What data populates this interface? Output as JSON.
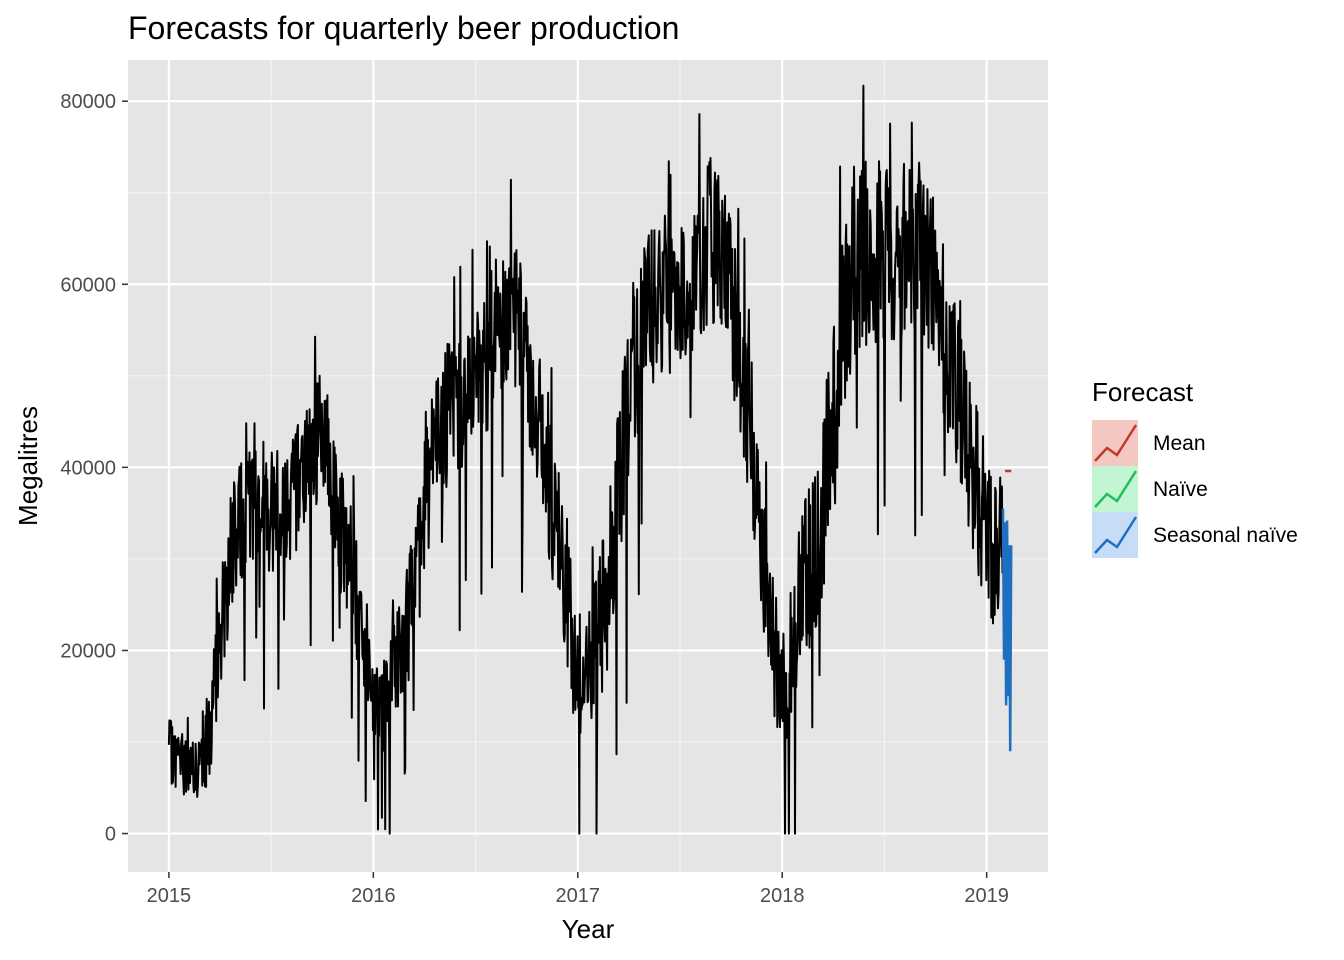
{
  "chart_data": {
    "type": "line",
    "title": "Forecasts for quarterly beer production",
    "xlabel": "Year",
    "ylabel": "Megalitres",
    "xlim": [
      2014.8,
      2019.3
    ],
    "ylim": [
      -4200,
      84500
    ],
    "x_ticks": [
      2015,
      2016,
      2017,
      2018,
      2019
    ],
    "x_tick_labels": [
      "2015",
      "2016",
      "2017",
      "2018",
      "2019"
    ],
    "y_ticks": [
      0,
      20000,
      40000,
      60000,
      80000
    ],
    "y_tick_labels": [
      "0",
      "20000",
      "40000",
      "60000",
      "80000"
    ],
    "grid": true,
    "legend": {
      "title": "Forecast",
      "placement": "right",
      "entries": [
        {
          "label": "Mean",
          "color": "#c0392b",
          "fill": "#f4c7c3"
        },
        {
          "label": "Naïve",
          "color": "#1fbf5a",
          "fill": "#c3f5d2"
        },
        {
          "label": "Seasonal naïve",
          "color": "#1f6fc0",
          "fill": "#c6dcf7"
        }
      ]
    },
    "series": [
      {
        "role": "actual",
        "color": "#000000",
        "x": [
          2015.0,
          2015.05,
          2015.1,
          2015.15,
          2015.2,
          2015.25,
          2015.3,
          2015.35,
          2015.4,
          2015.45,
          2015.5,
          2015.55,
          2015.6,
          2015.65,
          2015.7,
          2015.75,
          2015.8,
          2015.85,
          2015.9,
          2015.95,
          2016.0,
          2016.05,
          2016.1,
          2016.15,
          2016.2,
          2016.25,
          2016.3,
          2016.35,
          2016.4,
          2016.45,
          2016.5,
          2016.55,
          2016.6,
          2016.65,
          2016.7,
          2016.75,
          2016.8,
          2016.85,
          2016.9,
          2016.95,
          2017.0,
          2017.05,
          2017.1,
          2017.15,
          2017.2,
          2017.25,
          2017.3,
          2017.35,
          2017.4,
          2017.45,
          2017.5,
          2017.55,
          2017.6,
          2017.65,
          2017.7,
          2017.75,
          2017.8,
          2017.85,
          2017.9,
          2017.95,
          2018.0,
          2018.05,
          2018.1,
          2018.15,
          2018.2,
          2018.25,
          2018.3,
          2018.35,
          2018.4,
          2018.45,
          2018.5,
          2018.55,
          2018.6,
          2018.65,
          2018.7,
          2018.75,
          2018.8,
          2018.85,
          2018.9,
          2018.95,
          2019.0,
          2019.05,
          2019.08
        ],
        "values": [
          9000,
          8000,
          7500,
          6500,
          10000,
          22000,
          30000,
          34000,
          35000,
          36000,
          35500,
          36000,
          37000,
          39000,
          42000,
          44000,
          38000,
          32000,
          28000,
          22000,
          15000,
          14000,
          17000,
          21000,
          27000,
          35000,
          42000,
          45000,
          47000,
          48000,
          50000,
          52000,
          55000,
          57000,
          56000,
          52000,
          46000,
          40000,
          33000,
          25000,
          18000,
          17000,
          20000,
          28000,
          38000,
          48000,
          54000,
          57000,
          58000,
          59000,
          60000,
          61000,
          63000,
          65000,
          64000,
          58000,
          52000,
          43000,
          33000,
          22000,
          15000,
          20000,
          27000,
          30000,
          35000,
          46000,
          57000,
          62000,
          64000,
          63000,
          64000,
          63000,
          64000,
          65000,
          63000,
          60000,
          54000,
          48000,
          42000,
          38000,
          34000,
          30000,
          32000
        ],
        "spread": [
          3500,
          3500,
          3500,
          3500,
          5000,
          6000,
          7000,
          7000,
          7000,
          7000,
          7000,
          7000,
          7000,
          7000,
          7000,
          7000,
          7000,
          7000,
          7000,
          6000,
          5000,
          5000,
          6000,
          7000,
          8000,
          8000,
          8000,
          8000,
          8000,
          8000,
          8000,
          8500,
          9000,
          9000,
          9000,
          9000,
          9000,
          9000,
          9000,
          9000,
          8000,
          8000,
          9000,
          10000,
          10000,
          10000,
          10000,
          9000,
          9000,
          9000,
          9000,
          9000,
          9000,
          9000,
          9000,
          9000,
          9000,
          9000,
          9000,
          8000,
          7000,
          8000,
          9000,
          9000,
          10000,
          12000,
          12000,
          11000,
          11000,
          10000,
          10000,
          10000,
          10000,
          10000,
          10000,
          10000,
          10000,
          10000,
          10000,
          9000,
          9000,
          9000,
          8000
        ]
      },
      {
        "role": "forecast",
        "name": "Seasonal naïve",
        "color": "#1f6fc0",
        "x": [
          2019.08,
          2019.085,
          2019.09,
          2019.095,
          2019.1,
          2019.105,
          2019.11,
          2019.115,
          2019.12
        ],
        "values": [
          35500,
          19000,
          34000,
          14000,
          34200,
          15000,
          31500,
          9000,
          31500
        ]
      },
      {
        "role": "forecast",
        "name": "Mean",
        "color": "#c0392b",
        "x": [
          2019.09,
          2019.12
        ],
        "values": [
          39600,
          39600
        ]
      }
    ]
  }
}
